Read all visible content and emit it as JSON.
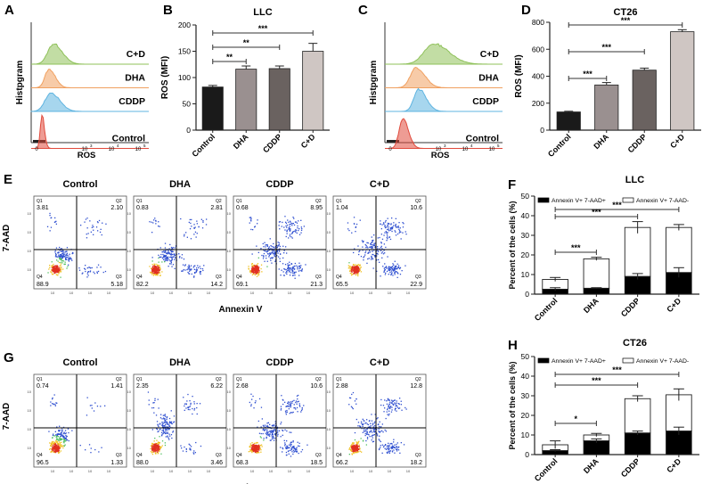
{
  "panels": {
    "A": {
      "letter": "A",
      "ylabel": "Histpgram",
      "xlabel": "ROS",
      "labels": [
        "C+D",
        "DHA",
        "CDDP",
        "Control"
      ],
      "colors": [
        "#8fc15a",
        "#f0a060",
        "#5fb4e0",
        "#e04a3c"
      ],
      "ticks": [
        "0",
        "10",
        "10",
        "10"
      ],
      "tick_exp": [
        "",
        "3",
        "4",
        "5"
      ]
    },
    "C": {
      "letter": "C",
      "ylabel": "Histpgram",
      "xlabel": "ROS",
      "labels": [
        "C+D",
        "DHA",
        "CDDP",
        "Control"
      ],
      "colors": [
        "#8fc15a",
        "#f0a060",
        "#5fb4e0",
        "#e04a3c"
      ],
      "ticks": [
        "0",
        "10",
        "10",
        "10"
      ],
      "tick_exp": [
        "",
        "3",
        "4",
        "5"
      ]
    },
    "E": {
      "letter": "E",
      "ylabel": "7-AAD",
      "xlabel": "Annexin V",
      "plots": [
        {
          "title": "Control",
          "q1": "3.81",
          "q2": "2.10",
          "q3": "5.18",
          "q4": "88.9"
        },
        {
          "title": "DHA",
          "q1": "0.83",
          "q2": "2.81",
          "q3": "14.2",
          "q4": "82.2"
        },
        {
          "title": "CDDP",
          "q1": "0.68",
          "q2": "8.95",
          "q3": "21.3",
          "q4": "69.1"
        },
        {
          "title": "C+D",
          "q1": "1.04",
          "q2": "10.6",
          "q3": "22.9",
          "q4": "65.5"
        }
      ]
    },
    "G": {
      "letter": "G",
      "ylabel": "7-AAD",
      "xlabel": "Annexin V",
      "plots": [
        {
          "title": "Control",
          "q1": "0.74",
          "q2": "1.41",
          "q3": "1.33",
          "q4": "96.5"
        },
        {
          "title": "DHA",
          "q1": "2.35",
          "q2": "6.22",
          "q3": "3.46",
          "q4": "88.0"
        },
        {
          "title": "CDDP",
          "q1": "2.68",
          "q2": "10.6",
          "q3": "18.5",
          "q4": "68.3"
        },
        {
          "title": "C+D",
          "q1": "2.88",
          "q2": "12.8",
          "q3": "18.2",
          "q4": "66.2"
        }
      ]
    },
    "quadrant_names": [
      "Q1",
      "Q2",
      "Q3",
      "Q4"
    ]
  },
  "chart_data": [
    {
      "panel": "B",
      "type": "bar",
      "title": "LLC",
      "ylabel": "ROS (MFI)",
      "categories": [
        "Control",
        "DHA",
        "CDDP",
        "C+D"
      ],
      "values": [
        82,
        116,
        117,
        150
      ],
      "errors": [
        3,
        6,
        5,
        15
      ],
      "colors": [
        "#1a1a1a",
        "#9a9090",
        "#6a6260",
        "#cfc6c3"
      ],
      "ylim": [
        0,
        200
      ],
      "yticks": [
        "0",
        "50",
        "100",
        "150",
        "200"
      ],
      "significance": [
        {
          "from": 0,
          "to": 1,
          "label": "**"
        },
        {
          "from": 0,
          "to": 2,
          "label": "**"
        },
        {
          "from": 0,
          "to": 3,
          "label": "***"
        }
      ]
    },
    {
      "panel": "D",
      "type": "bar",
      "title": "CT26",
      "ylabel": "ROS (MFI)",
      "categories": [
        "Control",
        "DHA",
        "CDDP",
        "C+D"
      ],
      "values": [
        135,
        335,
        445,
        730
      ],
      "errors": [
        5,
        18,
        15,
        15
      ],
      "colors": [
        "#1a1a1a",
        "#9a9090",
        "#6a6260",
        "#cfc6c3"
      ],
      "ylim": [
        0,
        800
      ],
      "yticks": [
        "0",
        "200",
        "400",
        "600",
        "800"
      ],
      "significance": [
        {
          "from": 0,
          "to": 1,
          "label": "***"
        },
        {
          "from": 0,
          "to": 2,
          "label": "***"
        },
        {
          "from": 0,
          "to": 3,
          "label": "***"
        }
      ]
    },
    {
      "panel": "F",
      "type": "bar",
      "stacked": true,
      "title": "LLC",
      "ylabel": "Percent of the cells (%)",
      "categories": [
        "Control",
        "DHA",
        "CDDP",
        "C+D"
      ],
      "series": [
        {
          "name": "Annexin V+ 7-AAD+",
          "values": [
            2.5,
            3,
            9,
            11
          ],
          "errors": [
            0.8,
            0.3,
            1.5,
            2.5
          ],
          "color": "#000000"
        },
        {
          "name": "Annexin V+ 7-AAD-",
          "values": [
            5,
            15,
            25,
            23
          ],
          "errors": [
            1,
            0.8,
            3,
            1.5
          ],
          "color": "#ffffff"
        }
      ],
      "ylim": [
        0,
        50
      ],
      "yticks": [
        "0",
        "10",
        "20",
        "30",
        "40",
        "50"
      ],
      "significance": [
        {
          "from": 0,
          "to": 1,
          "label": "***"
        },
        {
          "from": 0,
          "to": 2,
          "label": "***"
        },
        {
          "from": 0,
          "to": 3,
          "label": "***"
        }
      ]
    },
    {
      "panel": "H",
      "type": "bar",
      "stacked": true,
      "title": "CT26",
      "ylabel": "Percent of the cells (%)",
      "categories": [
        "Control",
        "DHA",
        "CDDP",
        "C+D"
      ],
      "series": [
        {
          "name": "Annexin V+ 7-AAD+",
          "values": [
            2,
            7,
            11,
            12
          ],
          "errors": [
            0.5,
            1,
            1,
            2
          ],
          "color": "#000000"
        },
        {
          "name": "Annexin V+ 7-AAD-",
          "values": [
            3,
            3,
            17.5,
            18.5
          ],
          "errors": [
            2,
            0.8,
            1.5,
            3
          ],
          "color": "#ffffff"
        }
      ],
      "ylim": [
        0,
        50
      ],
      "yticks": [
        "0",
        "10",
        "20",
        "30",
        "40",
        "50"
      ],
      "significance": [
        {
          "from": 0,
          "to": 1,
          "label": "*"
        },
        {
          "from": 0,
          "to": 2,
          "label": "***"
        },
        {
          "from": 0,
          "to": 3,
          "label": "***"
        }
      ]
    }
  ]
}
